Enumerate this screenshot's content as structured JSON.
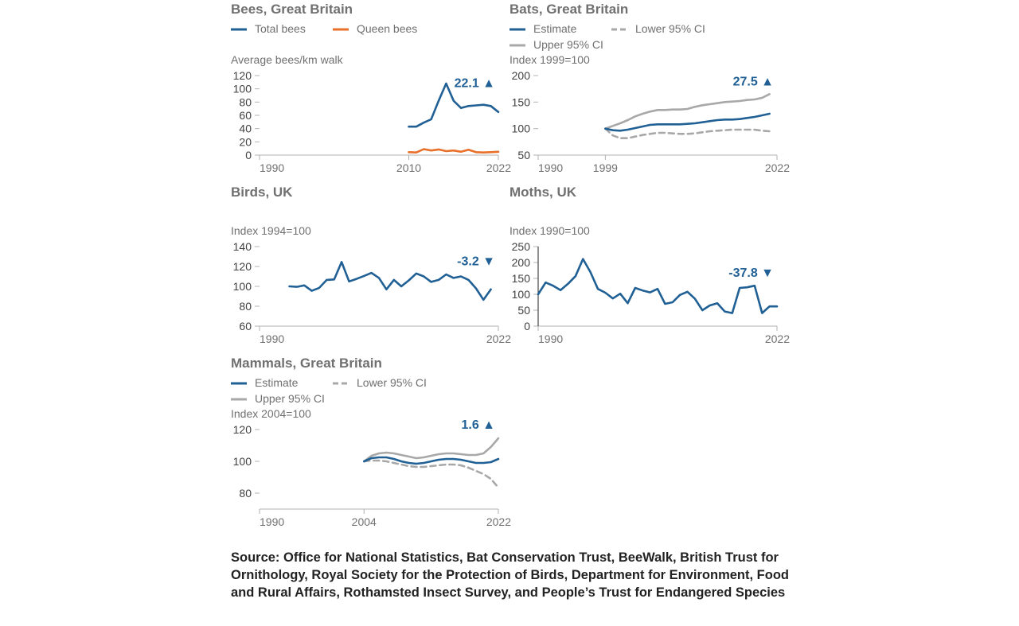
{
  "colors": {
    "primary": "#206095",
    "secondary": "#f66068",
    "orange": "#e8702a",
    "ci": "#a8a8a8",
    "axis": "#b3b3b3",
    "text": "#707071"
  },
  "source": "Source: Office for National Statistics, Bat Conservation Trust, BeeWalk, British Trust for Ornithology, Royal Society for the Protection of Birds, Department for Environment, Food and Rural Affairs, Rothamsted Insect Survey, and People’s Trust for Endangered Species",
  "chart_data": [
    {
      "id": "bees",
      "type": "line",
      "title": "Bees, Great Britain",
      "ylabel": "Average bees/km walk",
      "xlim": [
        1990,
        2022
      ],
      "ylim": [
        0,
        120
      ],
      "yticks": [
        0,
        20,
        40,
        60,
        80,
        100,
        120
      ],
      "xticks": [
        1990,
        2010,
        2022
      ],
      "change_label": "22.1 ▲",
      "change_anchor": "end",
      "change_year": 2022,
      "change_value": 110,
      "series": [
        {
          "name": "Total bees",
          "style": "solid",
          "color": "primary",
          "x": [
            2010,
            2011,
            2012,
            2013,
            2014,
            2015,
            2016,
            2017,
            2018,
            2019,
            2020,
            2021,
            2022
          ],
          "y": [
            43,
            43,
            49,
            54,
            82,
            108,
            82,
            71,
            74,
            75,
            76,
            74,
            65
          ]
        },
        {
          "name": "Queen bees",
          "style": "solid",
          "color": "orange",
          "x": [
            2010,
            2011,
            2012,
            2013,
            2014,
            2015,
            2016,
            2017,
            2018,
            2019,
            2020,
            2021,
            2022
          ],
          "y": [
            4.5,
            4,
            9,
            7,
            8.5,
            6,
            7,
            5,
            8,
            4.5,
            4,
            4.5,
            5
          ]
        }
      ]
    },
    {
      "id": "bats",
      "type": "line",
      "title": "Bats, Great Britain",
      "ylabel": "Index 1999=100",
      "xlim": [
        1990,
        2022
      ],
      "ylim": [
        50,
        200
      ],
      "yticks": [
        50,
        100,
        150,
        200
      ],
      "xticks": [
        1990,
        1999,
        2022
      ],
      "change_label": "27.5 ▲",
      "change_anchor": "end",
      "change_year": 2022,
      "change_value": 190,
      "series": [
        {
          "name": "Estimate",
          "style": "solid",
          "color": "primary",
          "x": [
            1999,
            2000,
            2001,
            2002,
            2003,
            2004,
            2005,
            2006,
            2007,
            2008,
            2009,
            2010,
            2011,
            2012,
            2013,
            2014,
            2015,
            2016,
            2017,
            2018,
            2019,
            2020,
            2021
          ],
          "y": [
            100,
            97,
            96,
            98,
            101,
            104,
            107,
            108,
            108,
            108,
            108,
            109,
            110,
            112,
            114,
            116,
            117,
            117,
            118,
            120,
            122,
            125,
            128
          ]
        },
        {
          "name": "Lower 95% CI",
          "style": "dashed",
          "color": "ci",
          "x": [
            1999,
            2000,
            2001,
            2002,
            2003,
            2004,
            2005,
            2006,
            2007,
            2008,
            2009,
            2010,
            2011,
            2012,
            2013,
            2014,
            2015,
            2016,
            2017,
            2018,
            2019,
            2020,
            2021
          ],
          "y": [
            100,
            87,
            82,
            82,
            85,
            88,
            90,
            92,
            92,
            91,
            90,
            90,
            91,
            93,
            95,
            96,
            97,
            98,
            98,
            98,
            98,
            96,
            95
          ]
        },
        {
          "name": "Upper 95% CI",
          "style": "solid",
          "color": "ci",
          "x": [
            1999,
            2000,
            2001,
            2002,
            2003,
            2004,
            2005,
            2006,
            2007,
            2008,
            2009,
            2010,
            2011,
            2012,
            2013,
            2014,
            2015,
            2016,
            2017,
            2018,
            2019,
            2020,
            2021
          ],
          "y": [
            100,
            105,
            110,
            116,
            123,
            128,
            132,
            135,
            135,
            136,
            136,
            137,
            141,
            144,
            146,
            148,
            150,
            151,
            152,
            154,
            155,
            158,
            165
          ]
        }
      ]
    },
    {
      "id": "birds",
      "type": "line",
      "title": "Birds, UK",
      "ylabel": "Index 1994=100",
      "xlim": [
        1990,
        2022
      ],
      "ylim": [
        60,
        140
      ],
      "yticks": [
        60,
        80,
        100,
        120,
        140
      ],
      "xticks": [
        1990,
        2022
      ],
      "change_label": "-3.2 ▼",
      "change_anchor": "end",
      "change_year": 2022,
      "change_value": 126,
      "series": [
        {
          "name": "Estimate",
          "style": "solid",
          "color": "primary",
          "x": [
            1994,
            1995,
            1996,
            1997,
            1998,
            1999,
            2000,
            2001,
            2002,
            2003,
            2004,
            2005,
            2006,
            2007,
            2008,
            2009,
            2010,
            2011,
            2012,
            2013,
            2014,
            2015,
            2016,
            2017,
            2018,
            2019,
            2020,
            2021
          ],
          "y": [
            100,
            99.5,
            101,
            95.5,
            98.5,
            106.5,
            107,
            124.5,
            105,
            107.5,
            110.5,
            113.5,
            108.5,
            97,
            106.5,
            100,
            106,
            113,
            110,
            104.5,
            106.5,
            112,
            108.5,
            110,
            106.5,
            98,
            86.5,
            97
          ]
        }
      ]
    },
    {
      "id": "moths",
      "type": "line",
      "title": "Moths, UK",
      "ylabel": "Index 1990=100",
      "xlim": [
        1990,
        2022
      ],
      "ylim": [
        0,
        250
      ],
      "yticks": [
        0,
        50,
        100,
        150,
        200,
        250
      ],
      "xticks": [
        1990,
        2022
      ],
      "change_label": "-37.8 ▼",
      "change_anchor": "end",
      "change_year": 2022,
      "change_value": 170,
      "series": [
        {
          "name": "Estimate",
          "style": "solid",
          "color": "primary",
          "x": [
            1990,
            1991,
            1992,
            1993,
            1994,
            1995,
            1996,
            1997,
            1998,
            1999,
            2000,
            2001,
            2002,
            2003,
            2004,
            2005,
            2006,
            2007,
            2008,
            2009,
            2010,
            2011,
            2012,
            2013,
            2014,
            2015,
            2016,
            2017,
            2018,
            2019,
            2020,
            2021,
            2022
          ],
          "y": [
            100,
            137,
            127,
            113,
            133,
            157,
            211,
            170,
            117,
            105,
            87,
            102,
            72,
            120,
            112,
            106,
            117,
            70,
            75,
            98,
            108,
            86,
            50,
            65,
            72,
            46,
            41,
            120,
            122,
            127,
            41,
            62,
            62
          ]
        }
      ]
    },
    {
      "id": "mammals",
      "type": "line",
      "title": "Mammals, Great Britain",
      "ylabel": "Index 2004=100",
      "xlim": [
        1990,
        2022
      ],
      "ylim": [
        70,
        130
      ],
      "yticks": [
        80,
        100,
        120
      ],
      "xticks": [
        1990,
        2004,
        2022
      ],
      "change_label": "1.6 ▲",
      "change_anchor": "end",
      "change_year": 2022,
      "change_value": 123.5,
      "series": [
        {
          "name": "Estimate",
          "style": "solid",
          "color": "primary",
          "x": [
            2004,
            2005,
            2006,
            2007,
            2008,
            2009,
            2010,
            2011,
            2012,
            2013,
            2014,
            2015,
            2016,
            2017,
            2018,
            2019,
            2020,
            2021,
            2022
          ],
          "y": [
            100,
            102,
            102.5,
            102.5,
            101.5,
            100,
            99,
            98.5,
            99,
            100,
            101,
            101.5,
            101.5,
            101,
            100,
            99,
            99,
            99.5,
            101.5
          ]
        },
        {
          "name": "Lower 95% CI",
          "style": "dashed",
          "color": "ci",
          "x": [
            2004,
            2005,
            2006,
            2007,
            2008,
            2009,
            2010,
            2011,
            2012,
            2013,
            2014,
            2015,
            2016,
            2017,
            2018,
            2019,
            2020,
            2021,
            2022
          ],
          "y": [
            100,
            100.5,
            100.5,
            100,
            99,
            98,
            97,
            96.5,
            96.5,
            97,
            97.5,
            98,
            98,
            97.5,
            96,
            94,
            92,
            89,
            83.5
          ]
        },
        {
          "name": "Upper 95% CI",
          "style": "solid",
          "color": "ci",
          "x": [
            2004,
            2005,
            2006,
            2007,
            2008,
            2009,
            2010,
            2011,
            2012,
            2013,
            2014,
            2015,
            2016,
            2017,
            2018,
            2019,
            2020,
            2021,
            2022
          ],
          "y": [
            100,
            103.5,
            105,
            105.5,
            105,
            104,
            103,
            102,
            102.5,
            103.5,
            104.5,
            105,
            105,
            104.5,
            104,
            104,
            105,
            109,
            114.5
          ]
        }
      ]
    }
  ]
}
